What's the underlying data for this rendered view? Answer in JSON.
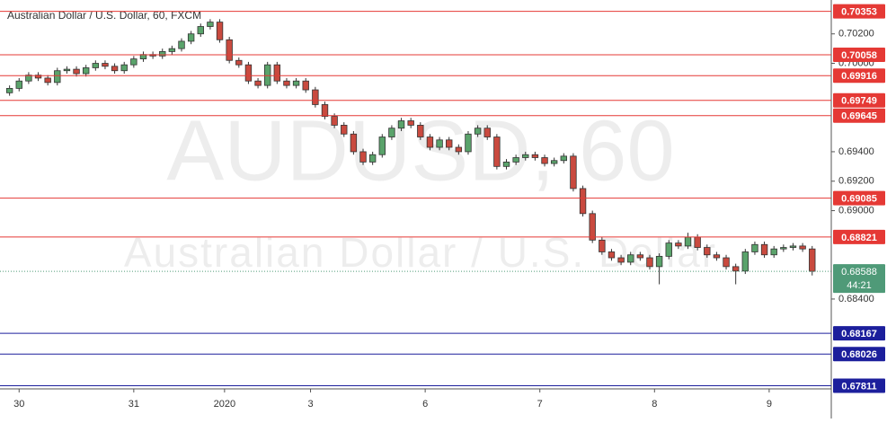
{
  "chart_data": {
    "type": "candlestick",
    "title": "Australian Dollar / U.S. Dollar, 60, FXCM",
    "watermark": {
      "symbol": "AUDUSD, 60",
      "description": "Australian Dollar / U.S. Dollar"
    },
    "up_color": "#5aa36b",
    "down_color": "#c94a3f",
    "open": [
      0.698,
      0.6983,
      0.6988,
      0.6992,
      0.699,
      0.6987,
      0.6995,
      0.6996,
      0.6993,
      0.6997,
      0.7,
      0.6998,
      0.6995,
      0.6999,
      0.7003,
      0.7006,
      0.7005,
      0.7008,
      0.701,
      0.7015,
      0.702,
      0.7025,
      0.7028,
      0.7016,
      0.7002,
      0.6999,
      0.6988,
      0.6985,
      0.6999,
      0.6988,
      0.6985,
      0.6988,
      0.6982,
      0.6972,
      0.6964,
      0.6958,
      0.6952,
      0.694,
      0.6933,
      0.6938,
      0.695,
      0.6956,
      0.6961,
      0.6958,
      0.695,
      0.6943,
      0.6948,
      0.6943,
      0.694,
      0.6952,
      0.6956,
      0.695,
      0.693,
      0.6933,
      0.6936,
      0.6938,
      0.6936,
      0.6932,
      0.6934,
      0.6937,
      0.6915,
      0.6898,
      0.688,
      0.6872,
      0.6868,
      0.6865,
      0.687,
      0.6868,
      0.6862,
      0.6869,
      0.6878,
      0.6876,
      0.6882,
      0.6875,
      0.687,
      0.6868,
      0.6862,
      0.6859,
      0.6872,
      0.6877,
      0.687,
      0.6874,
      0.6875,
      0.6876,
      0.6874
    ],
    "high": [
      0.6985,
      0.699,
      0.6994,
      0.6994,
      0.6992,
      0.6997,
      0.6998,
      0.6998,
      0.6999,
      0.7002,
      0.7002,
      0.7,
      0.7001,
      0.7005,
      0.7008,
      0.7008,
      0.701,
      0.7012,
      0.7017,
      0.7022,
      0.7027,
      0.703,
      0.703,
      0.7018,
      0.7004,
      0.7001,
      0.699,
      0.7001,
      0.7001,
      0.699,
      0.699,
      0.699,
      0.6984,
      0.6974,
      0.6966,
      0.696,
      0.6954,
      0.6942,
      0.694,
      0.6952,
      0.6958,
      0.6963,
      0.6963,
      0.696,
      0.6952,
      0.695,
      0.695,
      0.6945,
      0.6954,
      0.6958,
      0.6958,
      0.6952,
      0.6935,
      0.6938,
      0.694,
      0.694,
      0.6938,
      0.6936,
      0.6939,
      0.6939,
      0.6917,
      0.69,
      0.6882,
      0.6874,
      0.687,
      0.6872,
      0.6872,
      0.687,
      0.6871,
      0.688,
      0.688,
      0.6885,
      0.6884,
      0.6877,
      0.6872,
      0.687,
      0.6864,
      0.6874,
      0.6879,
      0.6879,
      0.6876,
      0.6877,
      0.6878,
      0.6878,
      0.6876
    ],
    "low": [
      0.6978,
      0.6981,
      0.6986,
      0.6988,
      0.6985,
      0.6985,
      0.6993,
      0.6991,
      0.6991,
      0.6995,
      0.6996,
      0.6993,
      0.6993,
      0.6997,
      0.7001,
      0.7003,
      0.7003,
      0.7006,
      0.7008,
      0.7013,
      0.7018,
      0.7023,
      0.7014,
      0.7,
      0.6997,
      0.6986,
      0.6983,
      0.6983,
      0.6986,
      0.6983,
      0.6983,
      0.698,
      0.697,
      0.6962,
      0.6956,
      0.695,
      0.6938,
      0.6931,
      0.6931,
      0.6936,
      0.6948,
      0.6954,
      0.6956,
      0.6948,
      0.6941,
      0.6941,
      0.6941,
      0.6938,
      0.6938,
      0.695,
      0.6948,
      0.6928,
      0.6928,
      0.6931,
      0.6934,
      0.6934,
      0.693,
      0.693,
      0.6932,
      0.6913,
      0.6896,
      0.6878,
      0.687,
      0.6866,
      0.6863,
      0.6863,
      0.6866,
      0.686,
      0.685,
      0.6867,
      0.6874,
      0.6874,
      0.6873,
      0.6868,
      0.6866,
      0.686,
      0.685,
      0.6857,
      0.687,
      0.6868,
      0.6868,
      0.6872,
      0.6873,
      0.6872,
      0.6856
    ],
    "close": [
      0.6983,
      0.6988,
      0.6992,
      0.699,
      0.6987,
      0.6995,
      0.6996,
      0.6993,
      0.6997,
      0.7,
      0.6998,
      0.6995,
      0.6999,
      0.7003,
      0.7006,
      0.7005,
      0.7008,
      0.701,
      0.7015,
      0.702,
      0.7025,
      0.7028,
      0.7016,
      0.7002,
      0.6999,
      0.6988,
      0.6985,
      0.6999,
      0.6988,
      0.6985,
      0.6988,
      0.6982,
      0.6972,
      0.6964,
      0.6958,
      0.6952,
      0.694,
      0.6933,
      0.6938,
      0.695,
      0.6956,
      0.6961,
      0.6958,
      0.695,
      0.6943,
      0.6948,
      0.6943,
      0.694,
      0.6952,
      0.6956,
      0.695,
      0.693,
      0.6933,
      0.6936,
      0.6938,
      0.6936,
      0.6932,
      0.6934,
      0.6937,
      0.6915,
      0.6898,
      0.688,
      0.6872,
      0.6868,
      0.6865,
      0.687,
      0.6868,
      0.6862,
      0.6869,
      0.6878,
      0.6876,
      0.6882,
      0.6875,
      0.687,
      0.6868,
      0.6862,
      0.6859,
      0.6872,
      0.6877,
      0.687,
      0.6874,
      0.6875,
      0.6876,
      0.6874,
      0.68588
    ],
    "xlim": [
      -1,
      86
    ],
    "xticks": [
      {
        "value": 1,
        "label": "30"
      },
      {
        "value": 13,
        "label": "31"
      },
      {
        "value": 22.5,
        "label": "2020"
      },
      {
        "value": 31.5,
        "label": "3"
      },
      {
        "value": 43.5,
        "label": "6"
      },
      {
        "value": 55.5,
        "label": "7"
      },
      {
        "value": 67.5,
        "label": "8"
      },
      {
        "value": 79.5,
        "label": "9"
      }
    ],
    "ylim": [
      0.6779,
      0.7043
    ],
    "yticks": [
      {
        "value": 0.702,
        "label": "0.70200"
      },
      {
        "value": 0.7,
        "label": "0.70000"
      },
      {
        "value": 0.694,
        "label": "0.69400"
      },
      {
        "value": 0.692,
        "label": "0.69200"
      },
      {
        "value": 0.69,
        "label": "0.69000"
      },
      {
        "value": 0.684,
        "label": "0.68400"
      }
    ],
    "levels": [
      {
        "value": 0.70353,
        "color": "#e53935"
      },
      {
        "value": 0.70058,
        "color": "#e53935"
      },
      {
        "value": 0.69916,
        "color": "#e53935"
      },
      {
        "value": 0.69749,
        "color": "#e53935"
      },
      {
        "value": 0.69645,
        "color": "#e53935"
      },
      {
        "value": 0.69085,
        "color": "#e53935"
      },
      {
        "value": 0.68821,
        "color": "#e53935"
      },
      {
        "value": 0.68167,
        "color": "#1c1f9c"
      },
      {
        "value": 0.68026,
        "color": "#1c1f9c"
      },
      {
        "value": 0.67811,
        "color": "#1c1f9c"
      }
    ],
    "last_price": {
      "color": "#4f9a78",
      "countdown": "44:21"
    }
  }
}
